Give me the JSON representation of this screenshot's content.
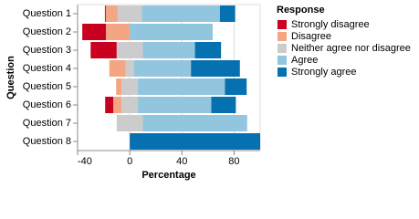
{
  "chart_data": {
    "type": "diverging-bar",
    "x_label": "Percentage",
    "y_label": "Question",
    "legend_title": "Response",
    "categories": [
      "Question 1",
      "Question 2",
      "Question 3",
      "Question 4",
      "Question 5",
      "Question 6",
      "Question 7",
      "Question 8"
    ],
    "series": [
      {
        "name": "Strongly disagree",
        "color": "#ca0020",
        "values": [
          0.7,
          18.2,
          20.0,
          0,
          0,
          6.3,
          0,
          0
        ]
      },
      {
        "name": "Disagree",
        "color": "#f4a582",
        "values": [
          9.1,
          18.2,
          0,
          12.5,
          4.2,
          6.3,
          0,
          0
        ]
      },
      {
        "name": "Neither agree nor disagree",
        "color": "#cccccc",
        "values": [
          18.5,
          0,
          20.0,
          6.3,
          12.5,
          12.5,
          20.0,
          0
        ]
      },
      {
        "name": "Agree",
        "color": "#92c5de",
        "values": [
          59.9,
          63.6,
          40.0,
          43.8,
          66.7,
          56.3,
          80.0,
          0
        ]
      },
      {
        "name": "Strongly agree",
        "color": "#0571b0",
        "values": [
          11.7,
          0,
          20.0,
          37.5,
          16.7,
          18.8,
          0,
          100
        ]
      }
    ],
    "xlim": [
      -40,
      100
    ],
    "xticks": [
      -40,
      0,
      40,
      80
    ],
    "grid": true,
    "legend": "right"
  }
}
